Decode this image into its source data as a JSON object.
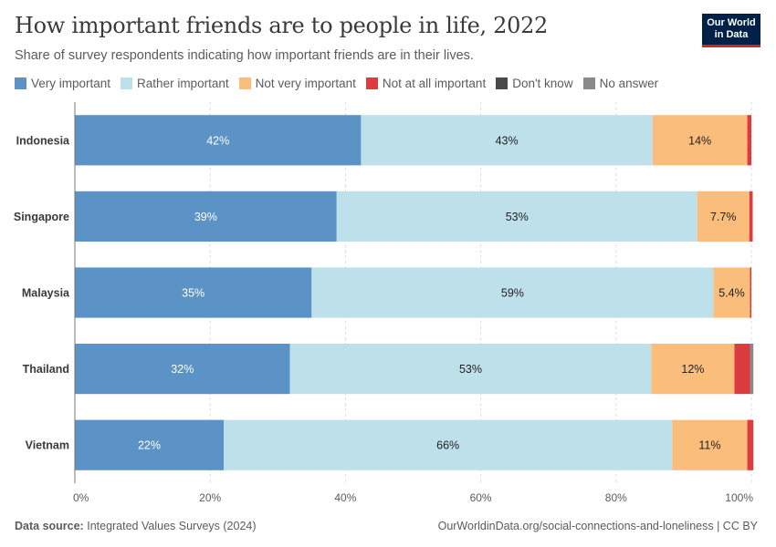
{
  "header": {
    "title": "How important friends are to people in life, 2022",
    "subtitle": "Share of survey respondents indicating how important friends are in their lives."
  },
  "logo": {
    "line1": "Our World",
    "line2": "in Data"
  },
  "footer": {
    "source_label": "Data source:",
    "source_text": "Integrated Values Surveys (2024)",
    "url": "OurWorldinData.org/social-connections-and-loneliness | CC BY"
  },
  "colors": {
    "very": "#5b93c6",
    "rather": "#bee0ea",
    "notvery": "#fbbd7c",
    "notatall": "#dc3c40",
    "dontknow": "#4a4a4a",
    "noanswer": "#8a8a8a",
    "grid": "#dddddd",
    "axis": "#777777"
  },
  "chart_data": {
    "type": "bar",
    "orientation": "horizontal",
    "stacked": true,
    "categories": [
      "Indonesia",
      "Singapore",
      "Malaysia",
      "Thailand",
      "Vietnam"
    ],
    "series": [
      {
        "name": "Very important",
        "color_key": "very",
        "values": [
          42.3,
          38.7,
          35.0,
          31.8,
          22.0
        ],
        "labels": [
          "42%",
          "39%",
          "35%",
          "32%",
          "22%"
        ],
        "label_color": "#ffffff"
      },
      {
        "name": "Rather important",
        "color_key": "rather",
        "values": [
          43.1,
          53.3,
          59.4,
          53.4,
          66.3
        ],
        "labels": [
          "43%",
          "53%",
          "59%",
          "53%",
          "66%"
        ],
        "label_color": "#222222"
      },
      {
        "name": "Not very important",
        "color_key": "notvery",
        "values": [
          14.0,
          7.7,
          5.4,
          12.3,
          11.1
        ],
        "labels": [
          "14%",
          "7.7%",
          "5.4%",
          "12%",
          "11%"
        ],
        "label_color": "#222222"
      },
      {
        "name": "Not at all important",
        "color_key": "notatall",
        "values": [
          0.6,
          0.5,
          0.2,
          2.3,
          0.9
        ],
        "labels": [
          "",
          "",
          "",
          "",
          ""
        ],
        "label_color": "#222222"
      },
      {
        "name": "Don't know",
        "color_key": "dontknow",
        "values": [
          0,
          0,
          0,
          0,
          0
        ],
        "labels": [
          "",
          "",
          "",
          "",
          ""
        ],
        "label_color": "#222222"
      },
      {
        "name": "No answer",
        "color_key": "noanswer",
        "values": [
          0,
          0,
          0,
          0.5,
          0
        ],
        "labels": [
          "",
          "",
          "",
          "",
          ""
        ],
        "label_color": "#222222"
      }
    ],
    "xlim": [
      0,
      100
    ],
    "xticks": [
      0,
      20,
      40,
      60,
      80,
      100
    ],
    "xtick_labels": [
      "0%",
      "20%",
      "40%",
      "60%",
      "80%",
      "100%"
    ],
    "grid": true,
    "legend_position": "top"
  }
}
